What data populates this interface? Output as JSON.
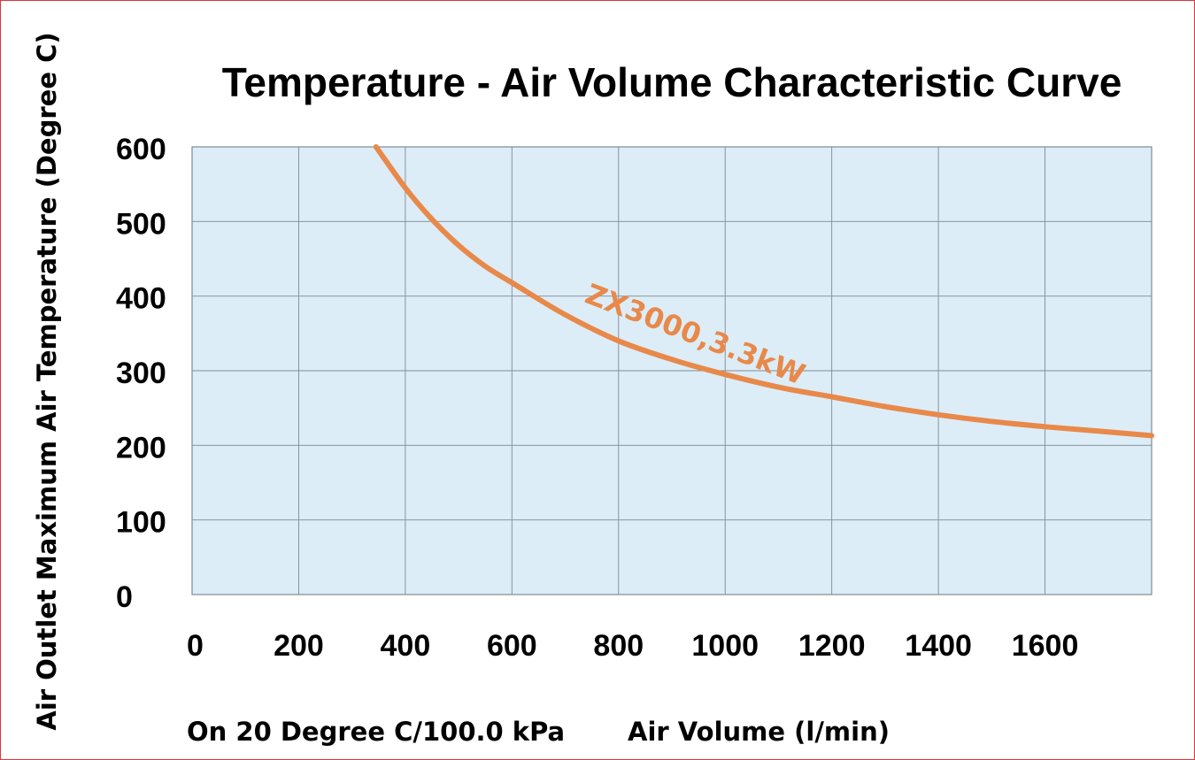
{
  "chart_data": {
    "type": "line",
    "title": "Temperature - Air Volume Characteristic Curve",
    "xlabel": "Air Volume (l/min)",
    "ylabel": "Air Outlet Maximum Air Temperature (Degree C)",
    "condition_note": "On 20 Degree C/100.0 kPa",
    "xlim": [
      0,
      1800
    ],
    "ylim": [
      0,
      600
    ],
    "x_ticks": [
      "0",
      "200",
      "400",
      "600",
      "800",
      "1000",
      "1200",
      "1400",
      "1600"
    ],
    "y_ticks": [
      "0",
      "100",
      "200",
      "300",
      "400",
      "500",
      "600"
    ],
    "grid": true,
    "series": [
      {
        "name": "ZX3000,3.3kW",
        "color": "#e8894a",
        "x": [
          345,
          400,
          450,
          500,
          550,
          600,
          700,
          800,
          900,
          1000,
          1100,
          1200,
          1300,
          1400,
          1500,
          1600,
          1700,
          1800
        ],
        "y": [
          600,
          545,
          503,
          468,
          440,
          418,
          375,
          340,
          315,
          295,
          278,
          265,
          252,
          241,
          232,
          225,
          219,
          213
        ]
      }
    ],
    "plot_background": "#dcedf8",
    "grid_color": "#7f8a96"
  }
}
